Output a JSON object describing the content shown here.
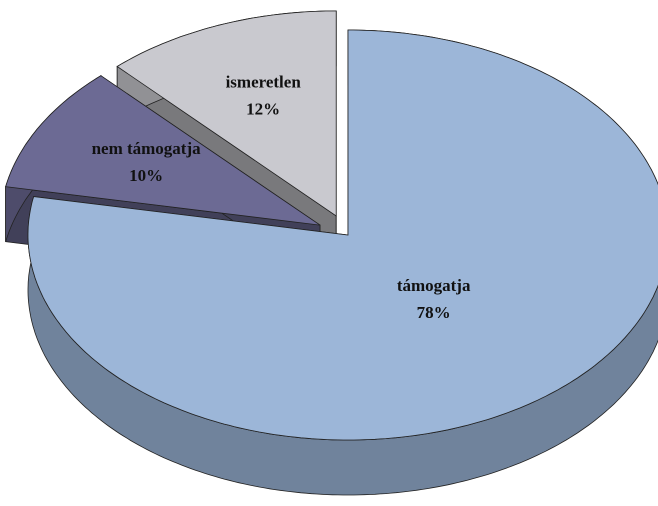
{
  "chart_data": {
    "type": "pie3d",
    "categories": [
      "támogatja",
      "nem támogatja",
      "ismeretlen"
    ],
    "values": [
      78,
      10,
      12
    ],
    "value_labels": [
      "78%",
      "10%",
      "12%"
    ],
    "colors": [
      "#9cb6d8",
      "#6c6a94",
      "#c9c9cf"
    ]
  }
}
